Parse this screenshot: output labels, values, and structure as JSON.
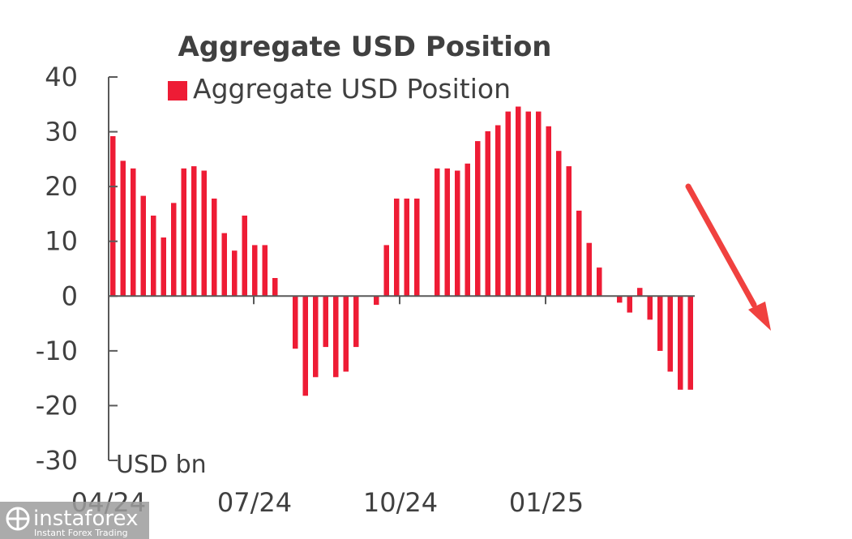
{
  "chart_data": {
    "type": "bar",
    "title": "Aggregate USD Position",
    "unit_label": "USD bn",
    "legend": {
      "label": "Aggregate USD Position",
      "position": "top"
    },
    "series": [
      {
        "name": "Aggregate USD Position",
        "color": "#ee1c35",
        "values": [
          29.2,
          24.7,
          23.3,
          18.3,
          14.7,
          10.7,
          17.0,
          23.3,
          23.7,
          22.9,
          17.8,
          11.5,
          8.3,
          14.7,
          9.3,
          9.3,
          3.3,
          0,
          -9.6,
          -18.2,
          -14.8,
          -9.3,
          -14.8,
          -13.8,
          -9.3,
          0,
          -1.6,
          9.3,
          17.8,
          17.8,
          17.8,
          0,
          23.3,
          23.3,
          22.9,
          24.2,
          28.3,
          30.1,
          31.2,
          33.7,
          34.6,
          33.7,
          33.7,
          31.0,
          26.5,
          23.7,
          15.6,
          9.7,
          5.2,
          0,
          -1.2,
          -3.0,
          1.5,
          -4.3,
          -10.0,
          -13.8,
          -17.1,
          -17.1
        ]
      }
    ],
    "ylim": [
      -30,
      40
    ],
    "yticks": [
      "40",
      "30",
      "20",
      "10",
      "0",
      "-10",
      "-20",
      "-30"
    ],
    "xticks": [
      "04/24",
      "07/24",
      "10/24",
      "01/25"
    ],
    "grid": false,
    "trend_arrow": {
      "direction": "down",
      "color": "#f0413f"
    }
  },
  "watermark": {
    "brand": "instaforex",
    "tagline": "Instant Forex Trading"
  }
}
